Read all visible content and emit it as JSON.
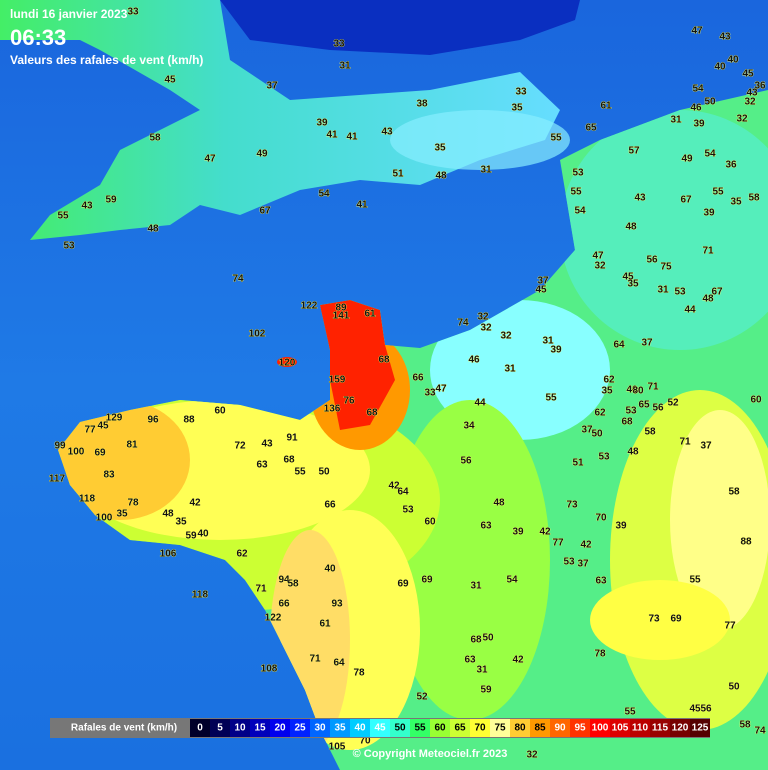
{
  "header": {
    "date": "lundi 16 janvier 2023",
    "time": "06:33",
    "subtitle": "Valeurs des rafales de vent (km/h)"
  },
  "stations": [
    33,
    33,
    31,
    45,
    37,
    38,
    33,
    35,
    61,
    65,
    47,
    43,
    40,
    40,
    45,
    36,
    32,
    43,
    50,
    54,
    46,
    31,
    39,
    32,
    39,
    41,
    41,
    43,
    35,
    55,
    58,
    47,
    49,
    57,
    49,
    54,
    36,
    51,
    48,
    31,
    53,
    55,
    55,
    35,
    58,
    54,
    41,
    67,
    59,
    43,
    55,
    48,
    53,
    54,
    43,
    67,
    39,
    48,
    47,
    32,
    56,
    75,
    71,
    74,
    37,
    45,
    45,
    35,
    31,
    53,
    48,
    67,
    44,
    122,
    89,
    141,
    61,
    32,
    74,
    32,
    32,
    31,
    39,
    64,
    37,
    102,
    68,
    46,
    120,
    159,
    66,
    47,
    33,
    31,
    62,
    35,
    40,
    80,
    71,
    76,
    55,
    44,
    136,
    68,
    129,
    60,
    96,
    88,
    62,
    53,
    65,
    56,
    52,
    60,
    77,
    45,
    34,
    37,
    50,
    68,
    58,
    81,
    72,
    43,
    91,
    71,
    37,
    99,
    100,
    69,
    53,
    48,
    63,
    68,
    55,
    50,
    56,
    51,
    117,
    83,
    42,
    64,
    118,
    78,
    42,
    66,
    48,
    73,
    58,
    53,
    100,
    35,
    48,
    35,
    60,
    63,
    39,
    42,
    70,
    39,
    59,
    40,
    77,
    42,
    88,
    106,
    62,
    53,
    37,
    40,
    69,
    69,
    31,
    54,
    63,
    55,
    94,
    58,
    71,
    118,
    93,
    66,
    122,
    73,
    69,
    77,
    61,
    68,
    50,
    78,
    63,
    42,
    31,
    71,
    64,
    78,
    108,
    50,
    59,
    52,
    45,
    56,
    55,
    58,
    74,
    105,
    70,
    32
  ],
  "legend": {
    "label": "Rafales de vent (km/h)",
    "items": [
      {
        "value": 0,
        "color": "#00002a"
      },
      {
        "value": 5,
        "color": "#000055"
      },
      {
        "value": 10,
        "color": "#000088"
      },
      {
        "value": 15,
        "color": "#0000bb"
      },
      {
        "value": 20,
        "color": "#0000ee"
      },
      {
        "value": 25,
        "color": "#0022ff"
      },
      {
        "value": 30,
        "color": "#0066ff"
      },
      {
        "value": 35,
        "color": "#0099ff"
      },
      {
        "value": 40,
        "color": "#00ccff"
      },
      {
        "value": 45,
        "color": "#33ffff"
      },
      {
        "value": 50,
        "color": "#33ffcc"
      },
      {
        "value": 55,
        "color": "#33ff66"
      },
      {
        "value": 60,
        "color": "#99ff33"
      },
      {
        "value": 65,
        "color": "#ccff33"
      },
      {
        "value": 70,
        "color": "#ffff33"
      },
      {
        "value": 75,
        "color": "#ffff99"
      },
      {
        "value": 80,
        "color": "#ffcc33"
      },
      {
        "value": 85,
        "color": "#ff9900"
      },
      {
        "value": 90,
        "color": "#ff6600"
      },
      {
        "value": 95,
        "color": "#ff3300"
      },
      {
        "value": 100,
        "color": "#ff0000"
      },
      {
        "value": 105,
        "color": "#dd0000"
      },
      {
        "value": 110,
        "color": "#bb0000"
      },
      {
        "value": 115,
        "color": "#990000"
      },
      {
        "value": 120,
        "color": "#770000"
      },
      {
        "value": 125,
        "color": "#550000"
      }
    ]
  },
  "footer": {
    "copyright": "© Copyright Meteociel.fr 2023"
  }
}
